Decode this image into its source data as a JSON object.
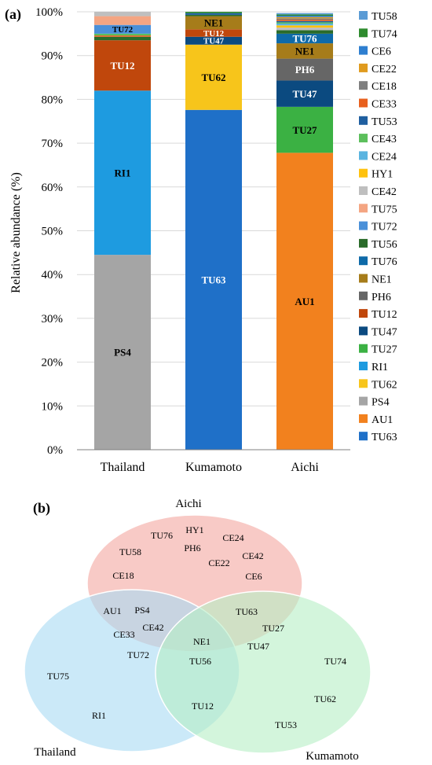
{
  "panel_a_label": "(a)",
  "panel_b_label": "(b)",
  "chart_data": {
    "type": "bar",
    "stacked": true,
    "ylabel": "Relative abundance (%)",
    "xlabel": "",
    "ylim": [
      0,
      100
    ],
    "y_ticks": [
      "0%",
      "10%",
      "20%",
      "30%",
      "40%",
      "50%",
      "60%",
      "70%",
      "80%",
      "90%",
      "100%"
    ],
    "categories": [
      "Thailand",
      "Kumamoto",
      "Aichi"
    ],
    "legend_position": "right",
    "legend": [
      {
        "name": "TU58",
        "color": "#5b9bd5"
      },
      {
        "name": "TU74",
        "color": "#2e8b2e"
      },
      {
        "name": "CE6",
        "color": "#2e7fd0"
      },
      {
        "name": "CE22",
        "color": "#e09b1e"
      },
      {
        "name": "CE18",
        "color": "#7f7f7f"
      },
      {
        "name": "CE33",
        "color": "#e8601e"
      },
      {
        "name": "TU53",
        "color": "#1f5fa0"
      },
      {
        "name": "CE43",
        "color": "#5cbf5c"
      },
      {
        "name": "CE24",
        "color": "#5ab4e0"
      },
      {
        "name": "HY1",
        "color": "#ffc20e"
      },
      {
        "name": "CE42",
        "color": "#bfbfbf"
      },
      {
        "name": "TU75",
        "color": "#f4a582"
      },
      {
        "name": "TU72",
        "color": "#4a90d9"
      },
      {
        "name": "TU56",
        "color": "#2a6b2a"
      },
      {
        "name": "TU76",
        "color": "#0e6aa8"
      },
      {
        "name": "NE1",
        "color": "#a67c1a"
      },
      {
        "name": "PH6",
        "color": "#666666"
      },
      {
        "name": "TU12",
        "color": "#c0470c"
      },
      {
        "name": "TU47",
        "color": "#0b4a80"
      },
      {
        "name": "TU27",
        "color": "#3bb143"
      },
      {
        "name": "RI1",
        "color": "#1e9be0"
      },
      {
        "name": "TU62",
        "color": "#f7c51b"
      },
      {
        "name": "PS4",
        "color": "#a5a5a5"
      },
      {
        "name": "AU1",
        "color": "#f2811e"
      },
      {
        "name": "TU63",
        "color": "#1f70c8"
      }
    ],
    "stacks": [
      {
        "category": "Thailand",
        "segments": [
          {
            "name": "PS4",
            "value": 44.5,
            "label": "PS4",
            "label_color": "#000000"
          },
          {
            "name": "RI1",
            "value": 37.5,
            "label": "RI1",
            "label_color": "#000000"
          },
          {
            "name": "TU12",
            "value": 11.5,
            "label": "TU12",
            "label_color": "#ffffff"
          },
          {
            "name": "TU56",
            "value": 0.8
          },
          {
            "name": "CE33",
            "value": 0.3
          },
          {
            "name": "CE43",
            "value": 0.4
          },
          {
            "name": "TU72",
            "value": 2.0,
            "label": "TU72",
            "label_color": "#000000"
          },
          {
            "name": "TU75",
            "value": 2.0
          },
          {
            "name": "CE42",
            "value": 1.0
          }
        ]
      },
      {
        "category": "Kumamoto",
        "segments": [
          {
            "name": "TU63",
            "value": 77.6,
            "label": "TU63",
            "label_color": "#ffffff"
          },
          {
            "name": "TU62",
            "value": 14.9,
            "label": "TU62",
            "label_color": "#000000"
          },
          {
            "name": "TU47",
            "value": 1.8,
            "label": "TU47",
            "label_color": "#ffffff"
          },
          {
            "name": "TU12",
            "value": 1.7,
            "label": "TU12",
            "label_color": "#ffffff"
          },
          {
            "name": "NE1",
            "value": 3.0,
            "label": "NE1",
            "label_color": "#000000"
          },
          {
            "name": "TU56",
            "value": 0.3
          },
          {
            "name": "TU53",
            "value": 0.4
          },
          {
            "name": "TU74",
            "value": 0.3
          }
        ]
      },
      {
        "category": "Aichi",
        "segments": [
          {
            "name": "AU1",
            "value": 67.8,
            "label": "AU1",
            "label_color": "#000000"
          },
          {
            "name": "TU27",
            "value": 10.5,
            "label": "TU27",
            "label_color": "#000000"
          },
          {
            "name": "TU47",
            "value": 6.0,
            "label": "TU47",
            "label_color": "#ffffff"
          },
          {
            "name": "PH6",
            "value": 5.0,
            "label": "PH6",
            "label_color": "#ffffff"
          },
          {
            "name": "NE1",
            "value": 3.5,
            "label": "NE1",
            "label_color": "#000000"
          },
          {
            "name": "TU76",
            "value": 2.2,
            "label": "TU76",
            "label_color": "#ffffff"
          },
          {
            "name": "TU56",
            "value": 0.8
          },
          {
            "name": "CE42",
            "value": 0.6
          },
          {
            "name": "HY1",
            "value": 0.5
          },
          {
            "name": "CE24",
            "value": 0.4
          },
          {
            "name": "CE43",
            "value": 0.3
          },
          {
            "name": "TU53",
            "value": 0.3
          },
          {
            "name": "CE33",
            "value": 0.3
          },
          {
            "name": "CE18",
            "value": 0.3
          },
          {
            "name": "CE22",
            "value": 0.3
          },
          {
            "name": "CE6",
            "value": 0.3
          },
          {
            "name": "TU74",
            "value": 0.3
          },
          {
            "name": "TU58",
            "value": 0.3
          }
        ]
      }
    ]
  },
  "venn": {
    "sets": [
      {
        "name": "Aichi",
        "fill": "#f4a6a0"
      },
      {
        "name": "Thailand",
        "fill": "#a9daf4"
      },
      {
        "name": "Kumamoto",
        "fill": "#b5efc4"
      }
    ],
    "members": [
      {
        "text": "HY1"
      },
      {
        "text": "TU76"
      },
      {
        "text": "PH6"
      },
      {
        "text": "CE24"
      },
      {
        "text": "TU58"
      },
      {
        "text": "CE22"
      },
      {
        "text": "CE42"
      },
      {
        "text": "CE18"
      },
      {
        "text": "CE6"
      },
      {
        "text": "AU1"
      },
      {
        "text": "PS4"
      },
      {
        "text": "CE42"
      },
      {
        "text": "CE33"
      },
      {
        "text": "TU72"
      },
      {
        "text": "TU63"
      },
      {
        "text": "TU27"
      },
      {
        "text": "TU47"
      },
      {
        "text": "NE1"
      },
      {
        "text": "TU56"
      },
      {
        "text": "TU75"
      },
      {
        "text": "RI1"
      },
      {
        "text": "TU12"
      },
      {
        "text": "TU74"
      },
      {
        "text": "TU62"
      },
      {
        "text": "TU53"
      }
    ]
  }
}
